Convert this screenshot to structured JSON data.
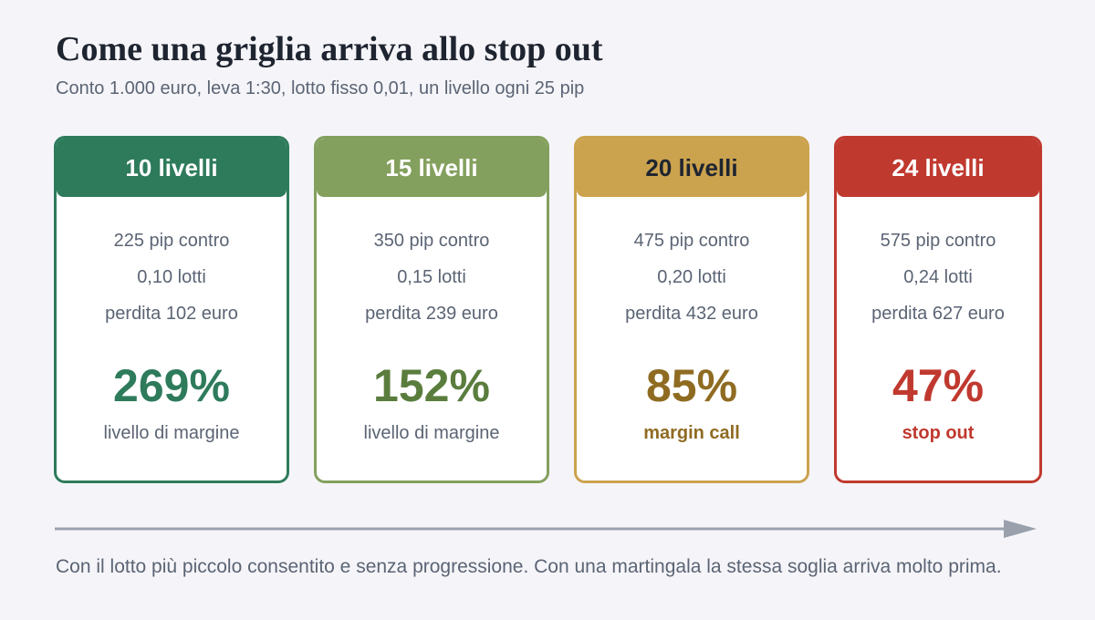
{
  "title": "Come una griglia arriva allo stop out",
  "subtitle": "Conto 1.000 euro, leva 1:30, lotto fisso 0,01, un livello ogni 25 pip",
  "cards": [
    {
      "header": "10 livelli",
      "pip": "225 pip contro",
      "lots": "0,10 lotti",
      "loss": "perdita 102 euro",
      "percent": "269%",
      "status": "livello di margine",
      "colors": {
        "border": "#2e7b5c",
        "header_bg": "#2e7b5c",
        "header_text": "#ffffff",
        "percent": "#2e7b5c",
        "status": "#5b6474"
      },
      "status_bold": false
    },
    {
      "header": "15 livelli",
      "pip": "350 pip contro",
      "lots": "0,15 lotti",
      "loss": "perdita 239 euro",
      "percent": "152%",
      "status": "livello di margine",
      "colors": {
        "border": "#84a05e",
        "header_bg": "#84a05e",
        "header_text": "#ffffff",
        "percent": "#5a7d3e",
        "status": "#5b6474"
      },
      "status_bold": false
    },
    {
      "header": "20 livelli",
      "pip": "475 pip contro",
      "lots": "0,20 lotti",
      "loss": "perdita 432 euro",
      "percent": "85%",
      "status": "margin call",
      "colors": {
        "border": "#cba24e",
        "header_bg": "#cba24e",
        "header_text": "#1e2430",
        "percent": "#8f6b22",
        "status": "#8f6b22"
      },
      "status_bold": true
    },
    {
      "header": "24 livelli",
      "pip": "575 pip contro",
      "lots": "0,24 lotti",
      "loss": "perdita 627 euro",
      "percent": "47%",
      "status": "stop out",
      "colors": {
        "border": "#c0392f",
        "header_bg": "#c0392f",
        "header_text": "#ffffff",
        "percent": "#c0392f",
        "status": "#c0392f"
      },
      "status_bold": true
    }
  ],
  "arrow_color": "#9aa1ad",
  "footer": "Con il lotto più piccolo consentito e senza progressione. Con una martingala la stessa soglia arriva molto prima."
}
